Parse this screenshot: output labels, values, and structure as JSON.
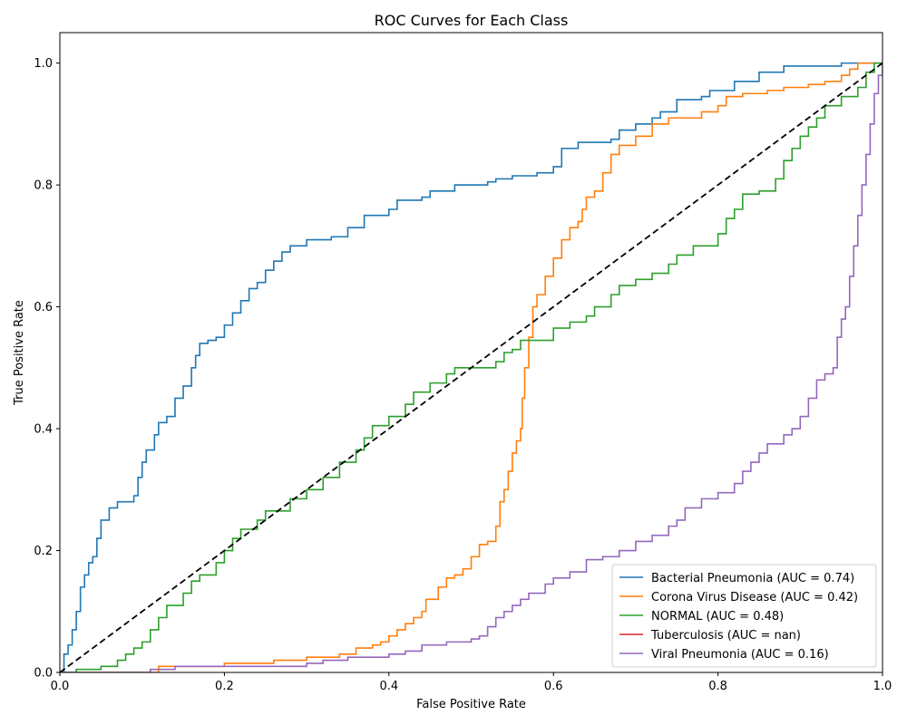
{
  "chart_data": {
    "type": "line",
    "title": "ROC Curves for Each Class",
    "xlabel": "False Positive Rate",
    "ylabel": "True Positive Rate",
    "xlim": [
      0.0,
      1.0
    ],
    "ylim": [
      0.0,
      1.05
    ],
    "xticks": [
      "0.0",
      "0.2",
      "0.4",
      "0.6",
      "0.8",
      "1.0"
    ],
    "yticks": [
      "0.0",
      "0.2",
      "0.4",
      "0.6",
      "0.8",
      "1.0"
    ],
    "grid": false,
    "legend_position": "lower-right",
    "series": [
      {
        "name": "Bacterial Pneumonia (AUC = 0.74)",
        "color": "#1f77b4",
        "points": [
          [
            0,
            0
          ],
          [
            0.005,
            0.03
          ],
          [
            0.01,
            0.045
          ],
          [
            0.015,
            0.07
          ],
          [
            0.02,
            0.1
          ],
          [
            0.025,
            0.14
          ],
          [
            0.03,
            0.16
          ],
          [
            0.035,
            0.18
          ],
          [
            0.04,
            0.19
          ],
          [
            0.045,
            0.22
          ],
          [
            0.05,
            0.25
          ],
          [
            0.06,
            0.27
          ],
          [
            0.07,
            0.28
          ],
          [
            0.08,
            0.28
          ],
          [
            0.09,
            0.29
          ],
          [
            0.095,
            0.32
          ],
          [
            0.1,
            0.345
          ],
          [
            0.105,
            0.365
          ],
          [
            0.115,
            0.39
          ],
          [
            0.12,
            0.41
          ],
          [
            0.13,
            0.42
          ],
          [
            0.14,
            0.45
          ],
          [
            0.15,
            0.47
          ],
          [
            0.16,
            0.5
          ],
          [
            0.165,
            0.52
          ],
          [
            0.17,
            0.54
          ],
          [
            0.18,
            0.545
          ],
          [
            0.19,
            0.55
          ],
          [
            0.2,
            0.57
          ],
          [
            0.21,
            0.59
          ],
          [
            0.22,
            0.61
          ],
          [
            0.23,
            0.63
          ],
          [
            0.24,
            0.64
          ],
          [
            0.25,
            0.66
          ],
          [
            0.26,
            0.675
          ],
          [
            0.27,
            0.69
          ],
          [
            0.28,
            0.7
          ],
          [
            0.3,
            0.71
          ],
          [
            0.33,
            0.715
          ],
          [
            0.35,
            0.73
          ],
          [
            0.37,
            0.75
          ],
          [
            0.4,
            0.76
          ],
          [
            0.41,
            0.775
          ],
          [
            0.44,
            0.78
          ],
          [
            0.45,
            0.79
          ],
          [
            0.48,
            0.8
          ],
          [
            0.52,
            0.805
          ],
          [
            0.53,
            0.81
          ],
          [
            0.55,
            0.815
          ],
          [
            0.58,
            0.82
          ],
          [
            0.6,
            0.83
          ],
          [
            0.61,
            0.86
          ],
          [
            0.63,
            0.87
          ],
          [
            0.67,
            0.875
          ],
          [
            0.68,
            0.89
          ],
          [
            0.7,
            0.9
          ],
          [
            0.72,
            0.91
          ],
          [
            0.73,
            0.92
          ],
          [
            0.75,
            0.94
          ],
          [
            0.78,
            0.945
          ],
          [
            0.79,
            0.955
          ],
          [
            0.82,
            0.97
          ],
          [
            0.85,
            0.985
          ],
          [
            0.88,
            0.995
          ],
          [
            0.95,
            1.0
          ],
          [
            1.0,
            1.0
          ]
        ]
      },
      {
        "name": "Corona Virus Disease (AUC = 0.42)",
        "color": "#ff7f0e",
        "points": [
          [
            0,
            0
          ],
          [
            0.115,
            0
          ],
          [
            0.12,
            0.01
          ],
          [
            0.17,
            0.01
          ],
          [
            0.2,
            0.015
          ],
          [
            0.26,
            0.02
          ],
          [
            0.3,
            0.025
          ],
          [
            0.34,
            0.03
          ],
          [
            0.36,
            0.04
          ],
          [
            0.38,
            0.045
          ],
          [
            0.39,
            0.05
          ],
          [
            0.4,
            0.06
          ],
          [
            0.41,
            0.07
          ],
          [
            0.42,
            0.08
          ],
          [
            0.43,
            0.09
          ],
          [
            0.44,
            0.1
          ],
          [
            0.445,
            0.12
          ],
          [
            0.46,
            0.14
          ],
          [
            0.47,
            0.155
          ],
          [
            0.48,
            0.16
          ],
          [
            0.49,
            0.17
          ],
          [
            0.5,
            0.19
          ],
          [
            0.51,
            0.21
          ],
          [
            0.52,
            0.215
          ],
          [
            0.53,
            0.24
          ],
          [
            0.535,
            0.28
          ],
          [
            0.54,
            0.3
          ],
          [
            0.545,
            0.33
          ],
          [
            0.55,
            0.36
          ],
          [
            0.555,
            0.38
          ],
          [
            0.56,
            0.4
          ],
          [
            0.562,
            0.45
          ],
          [
            0.565,
            0.5
          ],
          [
            0.57,
            0.55
          ],
          [
            0.575,
            0.6
          ],
          [
            0.58,
            0.62
          ],
          [
            0.59,
            0.65
          ],
          [
            0.6,
            0.68
          ],
          [
            0.61,
            0.71
          ],
          [
            0.62,
            0.73
          ],
          [
            0.63,
            0.74
          ],
          [
            0.635,
            0.76
          ],
          [
            0.64,
            0.78
          ],
          [
            0.65,
            0.79
          ],
          [
            0.66,
            0.82
          ],
          [
            0.67,
            0.85
          ],
          [
            0.68,
            0.865
          ],
          [
            0.7,
            0.88
          ],
          [
            0.72,
            0.9
          ],
          [
            0.74,
            0.91
          ],
          [
            0.78,
            0.92
          ],
          [
            0.8,
            0.93
          ],
          [
            0.81,
            0.945
          ],
          [
            0.83,
            0.95
          ],
          [
            0.86,
            0.955
          ],
          [
            0.88,
            0.96
          ],
          [
            0.91,
            0.965
          ],
          [
            0.93,
            0.97
          ],
          [
            0.95,
            0.98
          ],
          [
            0.96,
            0.99
          ],
          [
            0.97,
            1.0
          ],
          [
            1.0,
            1.0
          ]
        ]
      },
      {
        "name": "NORMAL (AUC = 0.48)",
        "color": "#2ca02c",
        "points": [
          [
            0,
            0
          ],
          [
            0.02,
            0
          ],
          [
            0.02,
            0.005
          ],
          [
            0.05,
            0.01
          ],
          [
            0.07,
            0.02
          ],
          [
            0.08,
            0.03
          ],
          [
            0.09,
            0.04
          ],
          [
            0.1,
            0.05
          ],
          [
            0.11,
            0.07
          ],
          [
            0.12,
            0.09
          ],
          [
            0.13,
            0.11
          ],
          [
            0.15,
            0.13
          ],
          [
            0.16,
            0.15
          ],
          [
            0.17,
            0.16
          ],
          [
            0.19,
            0.18
          ],
          [
            0.2,
            0.2
          ],
          [
            0.21,
            0.22
          ],
          [
            0.22,
            0.235
          ],
          [
            0.24,
            0.25
          ],
          [
            0.25,
            0.265
          ],
          [
            0.28,
            0.285
          ],
          [
            0.3,
            0.3
          ],
          [
            0.32,
            0.32
          ],
          [
            0.34,
            0.345
          ],
          [
            0.36,
            0.365
          ],
          [
            0.37,
            0.385
          ],
          [
            0.38,
            0.405
          ],
          [
            0.4,
            0.42
          ],
          [
            0.42,
            0.44
          ],
          [
            0.43,
            0.46
          ],
          [
            0.45,
            0.475
          ],
          [
            0.47,
            0.49
          ],
          [
            0.48,
            0.5
          ],
          [
            0.52,
            0.5
          ],
          [
            0.53,
            0.51
          ],
          [
            0.54,
            0.525
          ],
          [
            0.55,
            0.53
          ],
          [
            0.56,
            0.545
          ],
          [
            0.6,
            0.565
          ],
          [
            0.62,
            0.575
          ],
          [
            0.64,
            0.585
          ],
          [
            0.65,
            0.6
          ],
          [
            0.67,
            0.62
          ],
          [
            0.68,
            0.635
          ],
          [
            0.7,
            0.645
          ],
          [
            0.72,
            0.655
          ],
          [
            0.74,
            0.67
          ],
          [
            0.75,
            0.685
          ],
          [
            0.77,
            0.7
          ],
          [
            0.8,
            0.72
          ],
          [
            0.81,
            0.745
          ],
          [
            0.82,
            0.76
          ],
          [
            0.83,
            0.785
          ],
          [
            0.85,
            0.79
          ],
          [
            0.87,
            0.81
          ],
          [
            0.88,
            0.84
          ],
          [
            0.89,
            0.86
          ],
          [
            0.9,
            0.88
          ],
          [
            0.91,
            0.895
          ],
          [
            0.92,
            0.91
          ],
          [
            0.93,
            0.93
          ],
          [
            0.95,
            0.945
          ],
          [
            0.97,
            0.96
          ],
          [
            0.98,
            0.985
          ],
          [
            0.99,
            1.0
          ],
          [
            1.0,
            1.0
          ]
        ]
      },
      {
        "name": "Tuberculosis (AUC = nan)",
        "color": "#d62728",
        "points": []
      },
      {
        "name": "Viral Pneumonia (AUC = 0.16)",
        "color": "#9467bd",
        "points": [
          [
            0,
            0
          ],
          [
            0.11,
            0
          ],
          [
            0.11,
            0.005
          ],
          [
            0.14,
            0.01
          ],
          [
            0.28,
            0.01
          ],
          [
            0.3,
            0.015
          ],
          [
            0.32,
            0.02
          ],
          [
            0.35,
            0.025
          ],
          [
            0.4,
            0.03
          ],
          [
            0.42,
            0.035
          ],
          [
            0.44,
            0.045
          ],
          [
            0.47,
            0.05
          ],
          [
            0.5,
            0.055
          ],
          [
            0.51,
            0.06
          ],
          [
            0.52,
            0.075
          ],
          [
            0.53,
            0.09
          ],
          [
            0.54,
            0.1
          ],
          [
            0.55,
            0.11
          ],
          [
            0.56,
            0.12
          ],
          [
            0.57,
            0.13
          ],
          [
            0.59,
            0.145
          ],
          [
            0.6,
            0.155
          ],
          [
            0.62,
            0.165
          ],
          [
            0.64,
            0.185
          ],
          [
            0.66,
            0.19
          ],
          [
            0.68,
            0.2
          ],
          [
            0.7,
            0.215
          ],
          [
            0.72,
            0.225
          ],
          [
            0.74,
            0.24
          ],
          [
            0.75,
            0.25
          ],
          [
            0.76,
            0.27
          ],
          [
            0.78,
            0.285
          ],
          [
            0.8,
            0.295
          ],
          [
            0.82,
            0.31
          ],
          [
            0.83,
            0.33
          ],
          [
            0.84,
            0.345
          ],
          [
            0.85,
            0.36
          ],
          [
            0.86,
            0.375
          ],
          [
            0.88,
            0.39
          ],
          [
            0.89,
            0.4
          ],
          [
            0.9,
            0.42
          ],
          [
            0.91,
            0.45
          ],
          [
            0.92,
            0.48
          ],
          [
            0.93,
            0.49
          ],
          [
            0.94,
            0.5
          ],
          [
            0.945,
            0.55
          ],
          [
            0.95,
            0.58
          ],
          [
            0.955,
            0.6
          ],
          [
            0.96,
            0.65
          ],
          [
            0.965,
            0.7
          ],
          [
            0.97,
            0.75
          ],
          [
            0.975,
            0.8
          ],
          [
            0.98,
            0.85
          ],
          [
            0.985,
            0.9
          ],
          [
            0.99,
            0.95
          ],
          [
            0.995,
            0.98
          ],
          [
            1.0,
            1.0
          ]
        ]
      }
    ],
    "reference_line": {
      "points": [
        [
          0,
          0
        ],
        [
          1,
          1
        ]
      ],
      "color": "#000000",
      "style": "dashed"
    }
  }
}
